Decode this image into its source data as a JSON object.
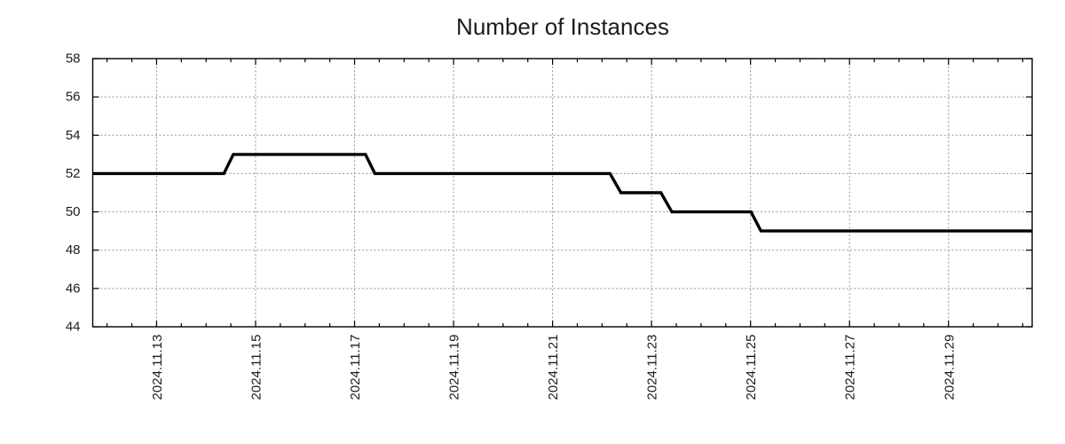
{
  "chart_data": {
    "type": "line",
    "title": "Number of Instances",
    "xlabel": "",
    "ylabel": "",
    "x_unit": "date (fractional day of November 2024)",
    "xlim_days": [
      11.71,
      30.69
    ],
    "ylim": [
      44,
      58
    ],
    "yticks": [
      44,
      46,
      48,
      50,
      52,
      54,
      56,
      58
    ],
    "xticks": [
      {
        "day": 13,
        "label": "2024.11.13"
      },
      {
        "day": 15,
        "label": "2024.11.15"
      },
      {
        "day": 17,
        "label": "2024.11.17"
      },
      {
        "day": 19,
        "label": "2024.11.19"
      },
      {
        "day": 21,
        "label": "2024.11.21"
      },
      {
        "day": 23,
        "label": "2024.11.23"
      },
      {
        "day": 25,
        "label": "2024.11.25"
      },
      {
        "day": 27,
        "label": "2024.11.27"
      },
      {
        "day": 29,
        "label": "2024.11.29"
      }
    ],
    "minor_xtick_interval_days": 0.5,
    "grid": true,
    "legend": "none",
    "series": [
      {
        "name": "Number of Instances",
        "style": "step-like line, no markers",
        "points_day_value": [
          [
            11.71,
            52
          ],
          [
            14.36,
            52
          ],
          [
            14.55,
            53
          ],
          [
            17.22,
            53
          ],
          [
            17.41,
            52
          ],
          [
            22.16,
            52
          ],
          [
            22.38,
            51
          ],
          [
            23.19,
            51
          ],
          [
            23.41,
            50
          ],
          [
            25.01,
            50
          ],
          [
            25.21,
            49
          ],
          [
            30.69,
            49
          ]
        ]
      }
    ],
    "colors": {
      "line": "#000000",
      "grid": "#949494",
      "axis": "#000000",
      "text": "#1c1c1c",
      "background": "#ffffff"
    }
  }
}
